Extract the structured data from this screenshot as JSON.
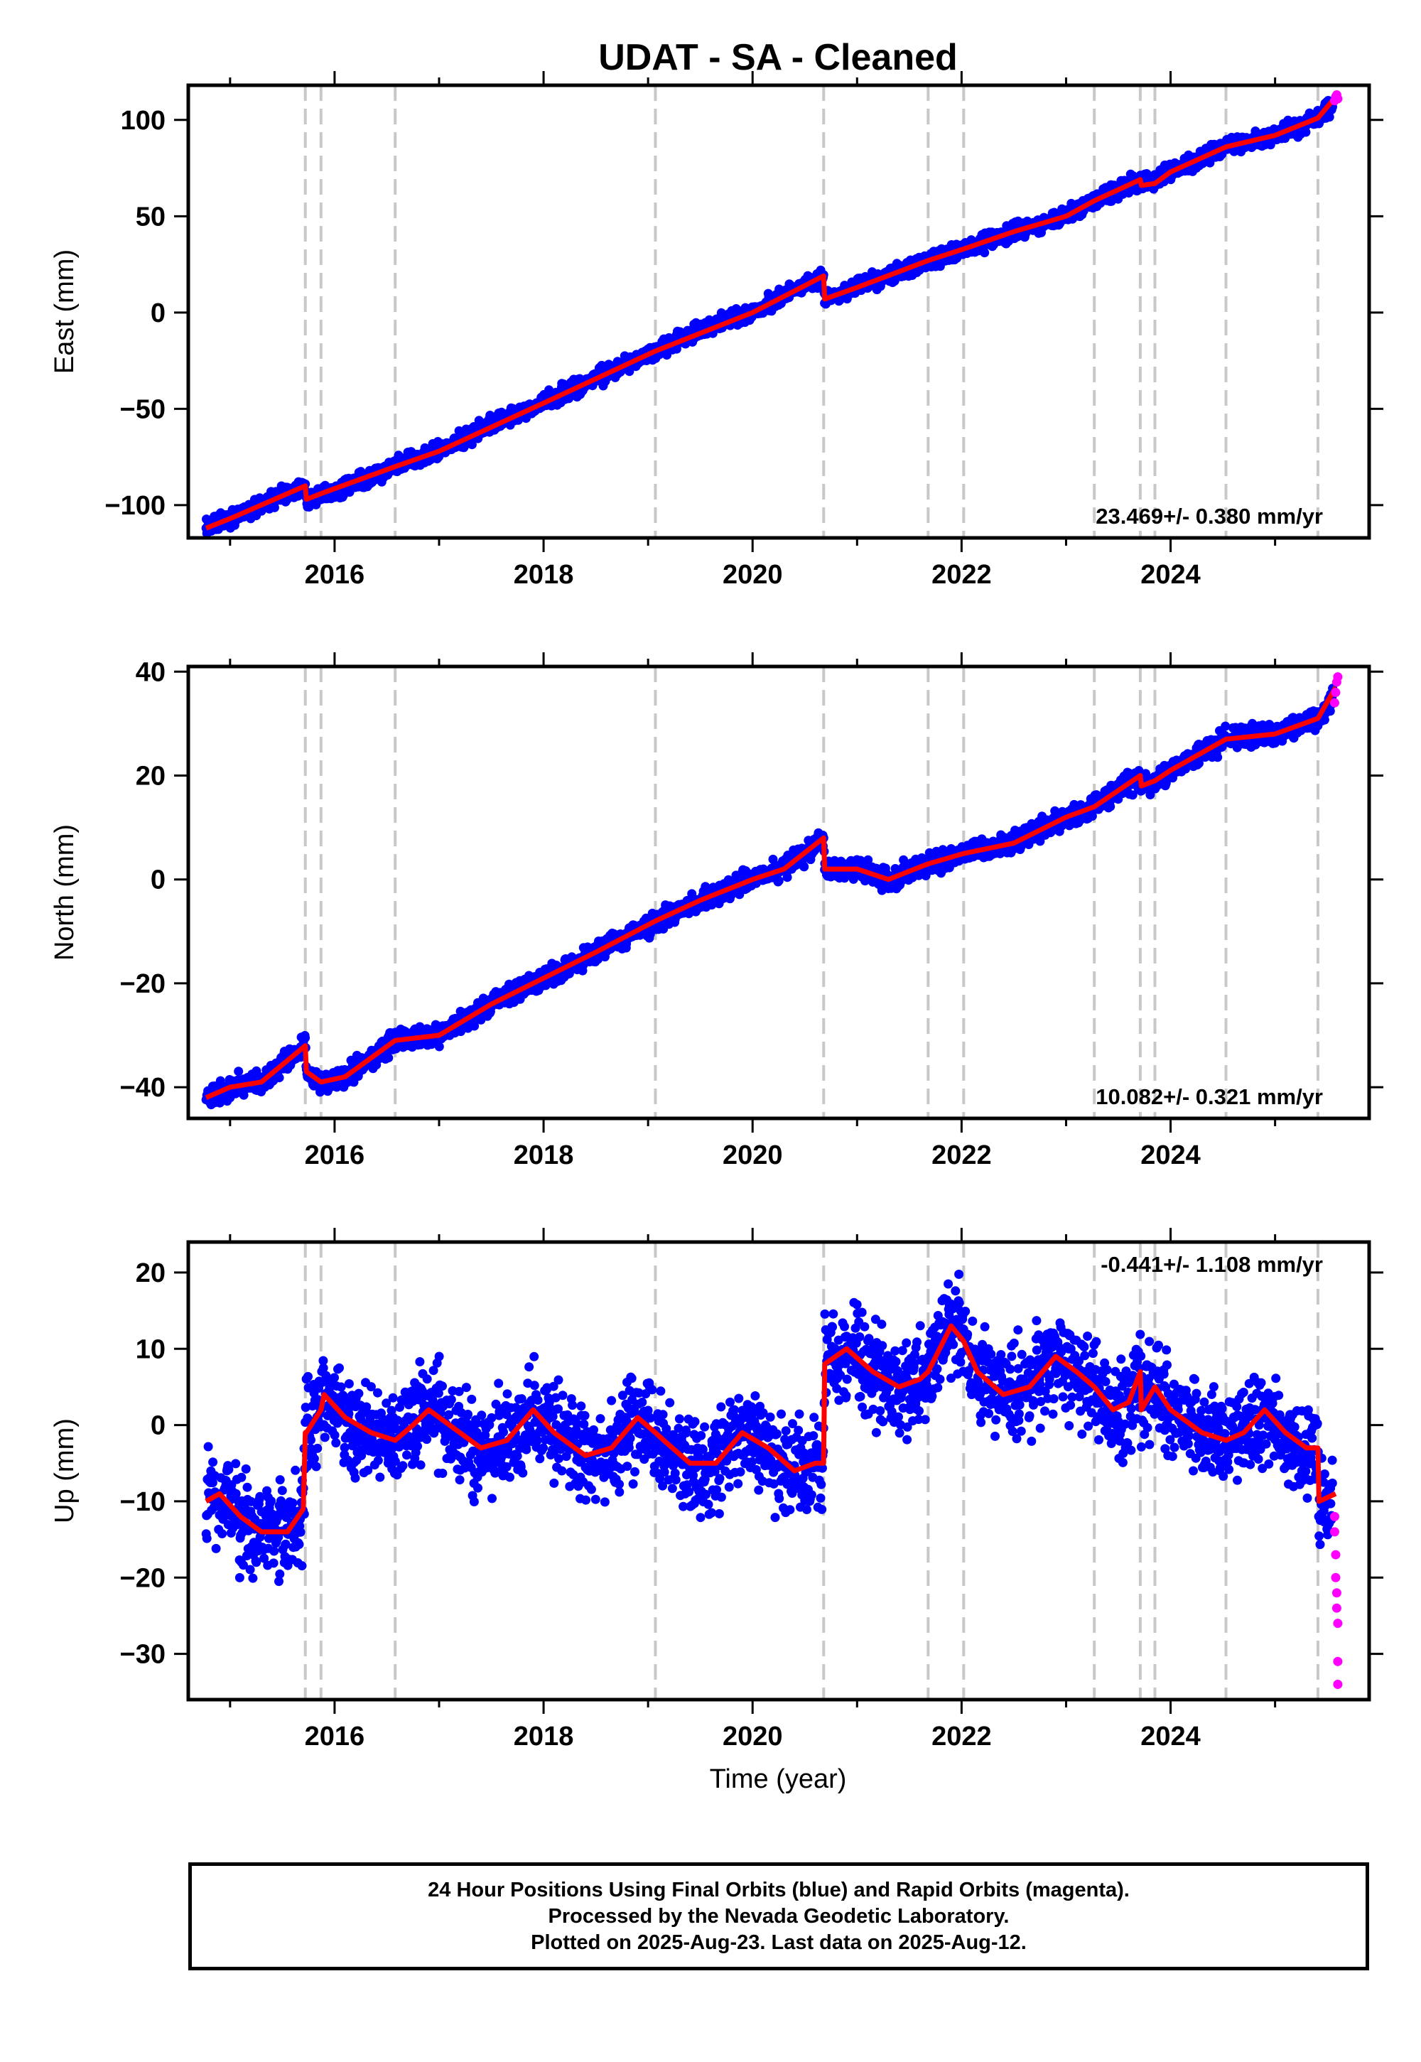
{
  "title": "UDAT  - SA - Cleaned",
  "colors": {
    "final": "#0000ff",
    "rapid": "#ff00ff",
    "model": "#ff0000",
    "steps": "#c8c8c8"
  },
  "xlabel": "Time (year)",
  "footer": {
    "line1": "24 Hour Positions Using Final Orbits (blue) and Rapid Orbits (magenta).",
    "line2": "Processed by the Nevada Geodetic Laboratory.",
    "line3": "Plotted on 2025-Aug-23. Last data on 2025-Aug-12."
  },
  "chart_data": [
    {
      "type": "scatter",
      "ylabel": "East (mm)",
      "rate_label": "23.469+/- 0.380 mm/yr",
      "xlim": [
        2014.6,
        2025.9
      ],
      "ylim": [
        -117,
        118
      ],
      "x_ticks": [
        2016,
        2018,
        2020,
        2022,
        2024
      ],
      "y_ticks": [
        -100,
        -50,
        0,
        50,
        100
      ],
      "step_epochs": [
        2015.72,
        2015.87,
        2016.58,
        2019.07,
        2020.68,
        2021.68,
        2022.02,
        2023.27,
        2023.71,
        2023.85,
        2024.53,
        2025.41
      ],
      "model": {
        "x": [
          2014.77,
          2015.0,
          2015.72,
          2015.73,
          2015.87,
          2016.58,
          2017.0,
          2018.0,
          2019.07,
          2020.0,
          2020.68,
          2020.69,
          2021.0,
          2021.68,
          2022.02,
          2022.5,
          2023.0,
          2023.27,
          2023.71,
          2023.72,
          2023.85,
          2024.0,
          2024.53,
          2025.0,
          2025.41,
          2025.58
        ],
        "y": [
          -112,
          -107,
          -90,
          -97,
          -94,
          -80,
          -72,
          -47,
          -20,
          0,
          19,
          7,
          13,
          27,
          33,
          42,
          50,
          58,
          69,
          66,
          67,
          73,
          86,
          92,
          101,
          112
        ]
      },
      "final_series": {
        "x": [
          2014.77,
          2015.0,
          2015.5,
          2015.72,
          2015.73,
          2016.0,
          2016.58,
          2017.0,
          2017.5,
          2018.0,
          2018.5,
          2019.07,
          2019.5,
          2020.0,
          2020.68,
          2020.69,
          2021.0,
          2021.68,
          2022.02,
          2022.5,
          2023.0,
          2023.27,
          2023.71,
          2023.72,
          2024.0,
          2024.53,
          2025.0,
          2025.41,
          2025.55
        ],
        "y": [
          -112,
          -107,
          -95,
          -90,
          -97,
          -93,
          -80,
          -72,
          -58,
          -47,
          -34,
          -20,
          -9,
          0,
          19,
          7,
          13,
          27,
          33,
          42,
          50,
          58,
          69,
          66,
          73,
          86,
          92,
          101,
          108
        ],
        "noise": 3.2
      },
      "rapid_series": {
        "x": [
          2025.57,
          2025.58,
          2025.59,
          2025.6
        ],
        "y": [
          110,
          112,
          113,
          111
        ]
      }
    },
    {
      "type": "scatter",
      "ylabel": "North (mm)",
      "rate_label": "10.082+/- 0.321 mm/yr",
      "xlim": [
        2014.6,
        2025.9
      ],
      "ylim": [
        -46,
        41
      ],
      "x_ticks": [
        2016,
        2018,
        2020,
        2022,
        2024
      ],
      "y_ticks": [
        -40,
        -20,
        0,
        20,
        40
      ],
      "step_epochs": [
        2015.72,
        2015.87,
        2016.58,
        2019.07,
        2020.68,
        2021.68,
        2022.02,
        2023.27,
        2023.71,
        2023.85,
        2024.53,
        2025.41
      ],
      "model": {
        "x": [
          2014.77,
          2015.0,
          2015.3,
          2015.72,
          2015.73,
          2015.87,
          2016.1,
          2016.58,
          2017.0,
          2017.5,
          2018.0,
          2018.5,
          2019.07,
          2019.5,
          2020.0,
          2020.3,
          2020.68,
          2020.69,
          2021.0,
          2021.3,
          2021.68,
          2022.02,
          2022.5,
          2023.0,
          2023.27,
          2023.71,
          2023.72,
          2023.85,
          2024.0,
          2024.53,
          2025.0,
          2025.41,
          2025.58
        ],
        "y": [
          -42,
          -40,
          -39,
          -32,
          -37,
          -39,
          -38,
          -31,
          -30,
          -24,
          -19,
          -14,
          -8,
          -4,
          0,
          2,
          8,
          2,
          2,
          0,
          3,
          5,
          7,
          12,
          14,
          20,
          18,
          19,
          21,
          27,
          28,
          31,
          37
        ]
      },
      "final_series": {
        "x": [
          2014.77,
          2015.0,
          2015.3,
          2015.72,
          2015.73,
          2015.87,
          2016.1,
          2016.58,
          2017.0,
          2017.5,
          2018.0,
          2018.5,
          2019.07,
          2019.5,
          2020.0,
          2020.3,
          2020.68,
          2020.69,
          2021.0,
          2021.3,
          2021.68,
          2022.02,
          2022.5,
          2023.0,
          2023.27,
          2023.71,
          2023.72,
          2023.85,
          2024.0,
          2024.53,
          2025.0,
          2025.41,
          2025.55
        ],
        "y": [
          -42,
          -40,
          -39,
          -32,
          -37,
          -39,
          -38,
          -31,
          -30,
          -24,
          -19,
          -14,
          -8,
          -4,
          0,
          2,
          8,
          2,
          2,
          0,
          3,
          5,
          7,
          12,
          14,
          20,
          18,
          19,
          21,
          27,
          28,
          31,
          35
        ],
        "noise": 1.5
      },
      "rapid_series": {
        "x": [
          2025.57,
          2025.58,
          2025.59,
          2025.6
        ],
        "y": [
          34,
          36,
          38,
          39
        ]
      }
    },
    {
      "type": "scatter",
      "ylabel": "Up (mm)",
      "rate_label": "-0.441+/- 1.108 mm/yr",
      "xlim": [
        2014.6,
        2025.9
      ],
      "ylim": [
        -36,
        24
      ],
      "x_ticks": [
        2016,
        2018,
        2020,
        2022,
        2024
      ],
      "y_ticks": [
        -30,
        -20,
        -10,
        0,
        10,
        20
      ],
      "step_epochs": [
        2015.72,
        2015.87,
        2016.58,
        2019.07,
        2020.68,
        2021.68,
        2022.02,
        2023.27,
        2023.71,
        2023.85,
        2024.53,
        2025.41
      ],
      "model": {
        "x": [
          2014.77,
          2014.9,
          2015.1,
          2015.3,
          2015.55,
          2015.7,
          2015.72,
          2015.73,
          2015.87,
          2015.9,
          2016.1,
          2016.35,
          2016.58,
          2016.75,
          2016.9,
          2017.1,
          2017.4,
          2017.65,
          2017.9,
          2018.1,
          2018.4,
          2018.65,
          2018.9,
          2019.07,
          2019.15,
          2019.4,
          2019.65,
          2019.9,
          2020.15,
          2020.4,
          2020.6,
          2020.68,
          2020.69,
          2020.9,
          2021.15,
          2021.4,
          2021.6,
          2021.68,
          2021.9,
          2022.02,
          2022.15,
          2022.4,
          2022.65,
          2022.9,
          2023.1,
          2023.27,
          2023.45,
          2023.6,
          2023.71,
          2023.72,
          2023.85,
          2024.0,
          2024.3,
          2024.53,
          2024.7,
          2024.9,
          2025.1,
          2025.3,
          2025.41,
          2025.42,
          2025.58
        ],
        "y": [
          -10,
          -9,
          -12,
          -14,
          -14,
          -11,
          -1,
          -1,
          2,
          4,
          1,
          -1,
          -2,
          0,
          2,
          0,
          -3,
          -2,
          2,
          -1,
          -4,
          -3,
          1,
          -1,
          -2,
          -5,
          -5,
          -1,
          -3,
          -6,
          -5,
          -5,
          8,
          10,
          7,
          5,
          6,
          7,
          13,
          11,
          7,
          4,
          5,
          9,
          7,
          5,
          2,
          3,
          7,
          2,
          5,
          2,
          -1,
          -2,
          -1,
          2,
          -1,
          -3,
          -3,
          -10,
          -9
        ]
      },
      "final_series": {
        "x": [
          2014.77,
          2014.9,
          2015.1,
          2015.3,
          2015.55,
          2015.7,
          2015.72,
          2015.73,
          2015.87,
          2015.9,
          2016.1,
          2016.35,
          2016.58,
          2016.75,
          2016.9,
          2017.1,
          2017.4,
          2017.65,
          2017.9,
          2018.1,
          2018.4,
          2018.65,
          2018.9,
          2019.07,
          2019.15,
          2019.4,
          2019.65,
          2019.9,
          2020.15,
          2020.4,
          2020.6,
          2020.68,
          2020.69,
          2020.9,
          2021.15,
          2021.4,
          2021.6,
          2021.68,
          2021.9,
          2022.02,
          2022.15,
          2022.4,
          2022.65,
          2022.9,
          2023.1,
          2023.27,
          2023.45,
          2023.6,
          2023.71,
          2023.72,
          2023.85,
          2024.0,
          2024.3,
          2024.53,
          2024.7,
          2024.9,
          2025.1,
          2025.3,
          2025.41,
          2025.42,
          2025.55
        ],
        "y": [
          -10,
          -9,
          -12,
          -14,
          -14,
          -11,
          -1,
          -1,
          2,
          4,
          1,
          -1,
          -2,
          0,
          2,
          0,
          -3,
          -2,
          2,
          -1,
          -4,
          -3,
          1,
          -1,
          -2,
          -5,
          -5,
          -1,
          -3,
          -6,
          -5,
          -5,
          8,
          10,
          7,
          5,
          6,
          7,
          13,
          11,
          7,
          4,
          5,
          9,
          7,
          5,
          2,
          3,
          7,
          2,
          5,
          2,
          -1,
          -2,
          -1,
          2,
          -1,
          -3,
          -3,
          -10,
          -9
        ],
        "noise": 4.5
      },
      "rapid_series": {
        "x": [
          2025.57,
          2025.57,
          2025.58,
          2025.58,
          2025.59,
          2025.59,
          2025.6,
          2025.6,
          2025.6
        ],
        "y": [
          -12,
          -14,
          -17,
          -20,
          -22,
          -24,
          -26,
          -31,
          -34
        ]
      }
    }
  ]
}
